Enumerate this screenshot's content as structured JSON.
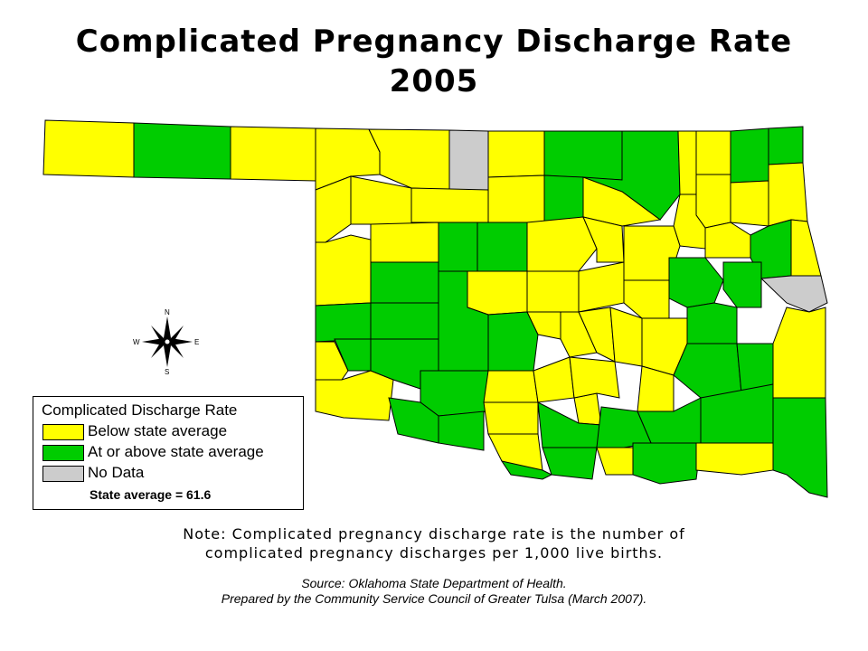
{
  "title": {
    "line1": "Complicated Pregnancy Discharge Rate",
    "line2": "2005"
  },
  "legend": {
    "title": "Complicated Discharge Rate",
    "items": [
      {
        "label": "Below state average",
        "color": "#ffff00"
      },
      {
        "label": "At or above state average",
        "color": "#00cc00"
      },
      {
        "label": "No Data",
        "color": "#cccccc"
      }
    ],
    "average": "State average = 61.6"
  },
  "note": {
    "line1": "Note:  Complicated pregnancy discharge rate is the number of",
    "line2": "complicated pregnancy discharges per 1,000 live births."
  },
  "source": {
    "line1": "Source:  Oklahoma State Department of Health.",
    "line2": "Prepared by the Community Service Council of Greater Tulsa (March 2007)."
  },
  "compass": {
    "n": "N",
    "s": "S",
    "e": "E",
    "w": "W"
  },
  "colors": {
    "below": "#ffff00",
    "above": "#00cc00",
    "nodata": "#cccccc"
  }
}
